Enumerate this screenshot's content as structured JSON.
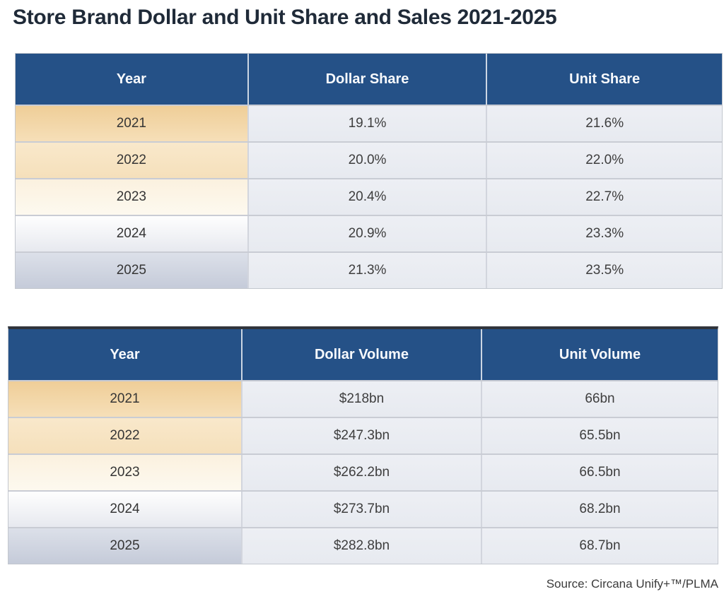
{
  "title": "Store Brand Dollar and Unit Share and Sales 2021-2025",
  "source_note": "Source: Circana Unify+™/PLMA",
  "colors": {
    "header-bg": "#255187",
    "header-text": "#f8fafd",
    "table2-top-border": "#31353c",
    "y2021-top": "#efce98",
    "y2021-bottom": "#f6dfb8",
    "y2022-top": "#f9e8cb",
    "y2022-bottom": "#f5e0bb",
    "y2023-top": "#fbf1df",
    "y2023-bottom": "#fdf9ef",
    "y2024-top": "#fefefe",
    "y2024-bottom": "#e7e9ef",
    "y2025-top": "#dce0e9",
    "y2025-bottom": "#c5cbd9"
  },
  "chart_data": [
    {
      "type": "table",
      "columns": [
        "Year",
        "Dollar Share",
        "Unit Share"
      ],
      "rows": [
        [
          "2021",
          "19.1%",
          "21.6%"
        ],
        [
          "2022",
          "20.0%",
          "22.0%"
        ],
        [
          "2023",
          "20.4%",
          "22.7%"
        ],
        [
          "2024",
          "20.9%",
          "23.3%"
        ],
        [
          "2025",
          "21.3%",
          "23.5%"
        ]
      ]
    },
    {
      "type": "table",
      "columns": [
        "Year",
        "Dollar Volume",
        "Unit Volume"
      ],
      "rows": [
        [
          "2021",
          "$218bn",
          "66bn"
        ],
        [
          "2022",
          "$247.3bn",
          "65.5bn"
        ],
        [
          "2023",
          "$262.2bn",
          "66.5bn"
        ],
        [
          "2024",
          "$273.7bn",
          "68.2bn"
        ],
        [
          "2025",
          "$282.8bn",
          "68.7bn"
        ]
      ]
    }
  ]
}
